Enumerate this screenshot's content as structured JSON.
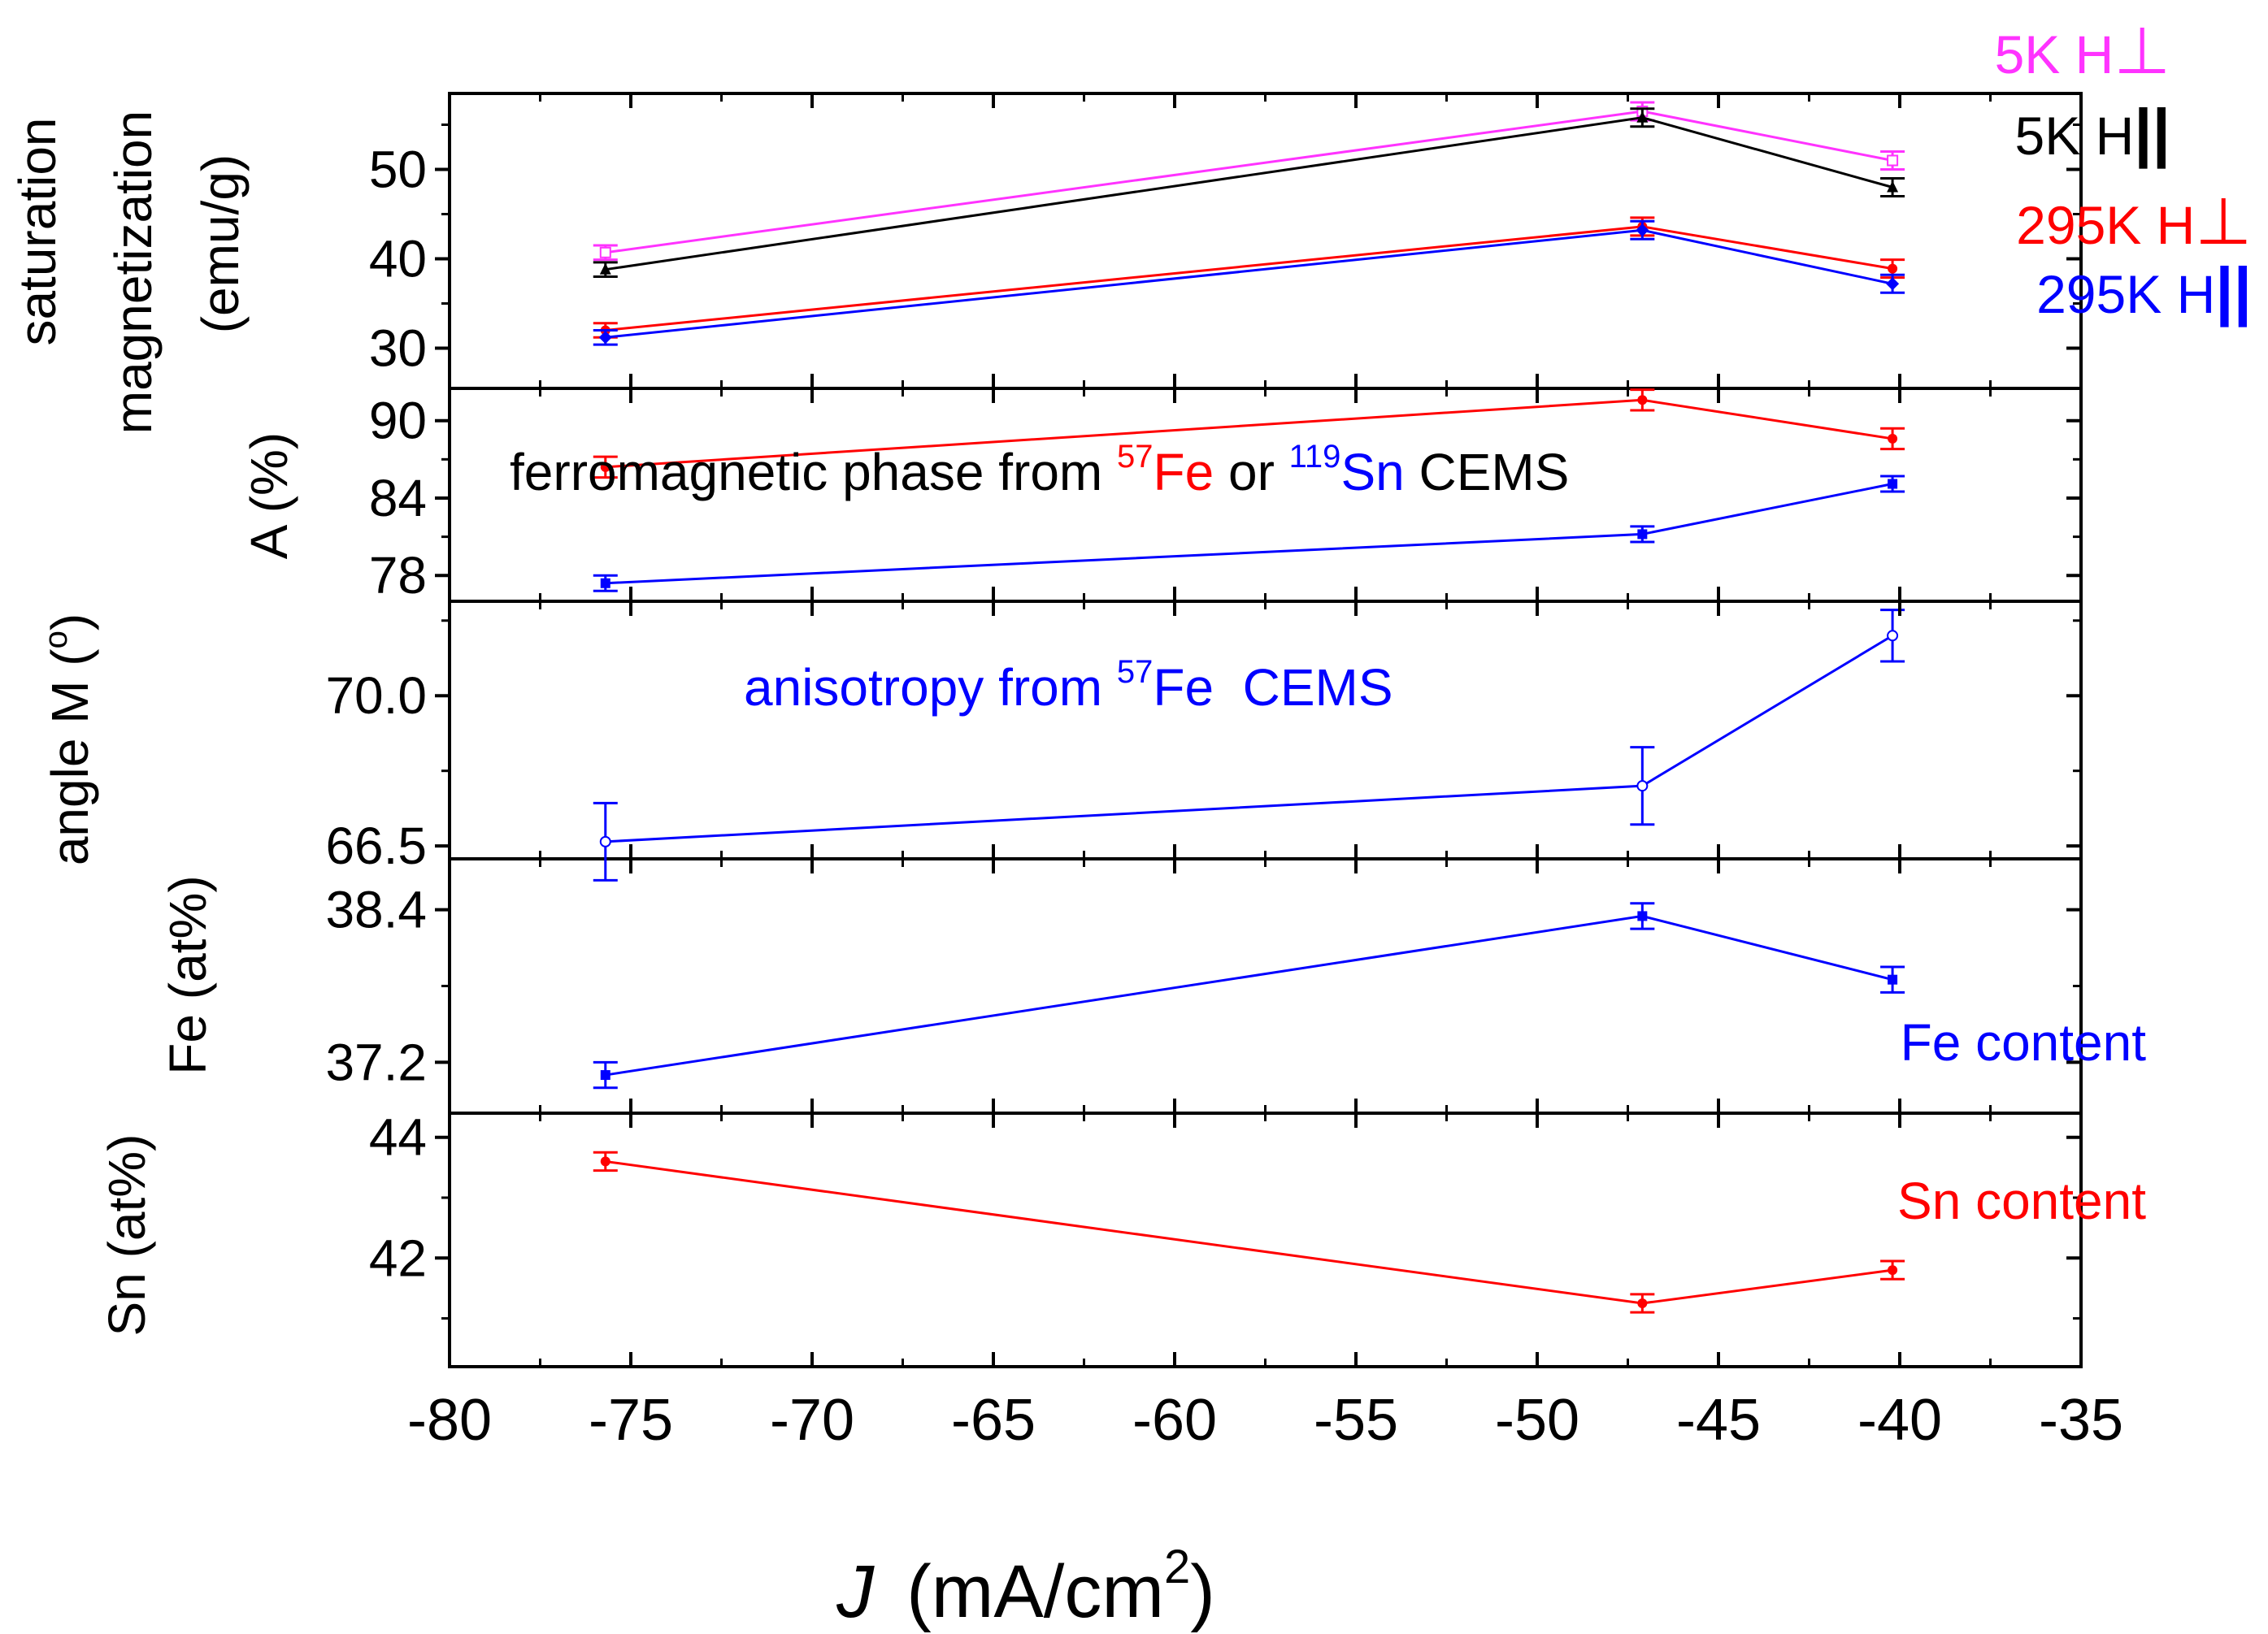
{
  "x_axis": {
    "label_italic": "J",
    "label_rest": "(mA/cm",
    "label_sup": "2",
    "label_close": ")",
    "range": [
      -80,
      -35
    ],
    "ticks": [
      -80,
      -75,
      -70,
      -65,
      -60,
      -55,
      -50,
      -45,
      -40,
      -35
    ],
    "tick_labels": [
      "-80",
      "-75",
      "-70",
      "-65",
      "-60",
      "-55",
      "-50",
      "-45",
      "-40",
      "-35"
    ]
  },
  "colors": {
    "magenta": "#ff33ff",
    "black": "#000000",
    "red": "#ff0000",
    "blue": "#0000ff"
  },
  "chart_data": [
    {
      "type": "line",
      "id": "magnetization",
      "ylabel_line1": "saturation",
      "ylabel_line2": "magnetization",
      "ylabel_line3": "(emu/g)",
      "ylim": [
        25.5,
        58.5
      ],
      "yticks": [
        30,
        40,
        50
      ],
      "ytick_labels": [
        "30",
        "40",
        "50"
      ],
      "series": [
        {
          "name": "5K H⊥",
          "label_text": "5K H",
          "label_symbol": "⊥",
          "color": "#ff33ff",
          "marker": "open-square",
          "x": [
            -75.7,
            -47.1,
            -40.2
          ],
          "y": [
            40.7,
            56.5,
            51.0
          ],
          "err": [
            0.8,
            1.0,
            1.0
          ]
        },
        {
          "name": "5K H||",
          "label_text": "5K H",
          "label_symbol": "||",
          "color": "#000000",
          "marker": "triangle",
          "x": [
            -75.7,
            -47.1,
            -40.2
          ],
          "y": [
            38.8,
            55.8,
            48.0
          ],
          "err": [
            0.8,
            1.0,
            1.0
          ]
        },
        {
          "name": "295K H⊥",
          "label_text": "295K H",
          "label_symbol": "⊥",
          "color": "#ff0000",
          "marker": "dot",
          "x": [
            -75.7,
            -47.1,
            -40.2
          ],
          "y": [
            32.0,
            43.6,
            38.9
          ],
          "err": [
            0.8,
            1.0,
            1.0
          ]
        },
        {
          "name": "295K H||",
          "label_text": "295K H",
          "label_symbol": "||",
          "color": "#0000ff",
          "marker": "diamond",
          "x": [
            -75.7,
            -47.1,
            -40.2
          ],
          "y": [
            31.2,
            43.2,
            37.2
          ],
          "err": [
            0.8,
            1.0,
            1.0
          ]
        }
      ]
    },
    {
      "type": "line",
      "id": "ferromagnetic-phase",
      "ylabel": "A (%)",
      "ylim": [
        76,
        92.5
      ],
      "yticks": [
        78,
        84,
        90
      ],
      "ytick_labels": [
        "78",
        "84",
        "90"
      ],
      "annotation": {
        "p1": "ferromagnetic phase from ",
        "sup1": "57",
        "el1": "Fe",
        "p2": " or ",
        "sup2": "119",
        "el2": "Sn",
        "p3": " CEMS"
      },
      "series": [
        {
          "name": "57Fe CEMS",
          "color": "#ff0000",
          "marker": "dot",
          "x": [
            -75.7,
            -47.1,
            -40.2
          ],
          "y": [
            86.4,
            91.6,
            88.6
          ],
          "err": [
            0.8,
            0.8,
            0.8
          ]
        },
        {
          "name": "119Sn CEMS",
          "color": "#0000ff",
          "marker": "square",
          "x": [
            -75.7,
            -47.1,
            -40.2
          ],
          "y": [
            77.4,
            81.2,
            85.1
          ],
          "err": [
            0.6,
            0.6,
            0.6
          ]
        }
      ]
    },
    {
      "type": "line",
      "id": "anisotropy",
      "ylabel": "angle M (°)",
      "ylabel_text": "angle M (",
      "ylabel_sup": "o",
      "ylabel_close": ")",
      "ylim": [
        66.2,
        72.2
      ],
      "yticks": [
        66.5,
        70.0
      ],
      "ytick_labels": [
        "66.5",
        "70.0"
      ],
      "annotation": {
        "p1": "anisotropy from ",
        "sup1": "57",
        "el1": "Fe  CEMS"
      },
      "series": [
        {
          "name": "57Fe CEMS anisotropy",
          "color": "#0000ff",
          "marker": "open-circle",
          "x": [
            -75.7,
            -47.1,
            -40.2
          ],
          "y": [
            66.6,
            67.9,
            71.4
          ],
          "err": [
            0.9,
            0.9,
            0.6
          ]
        }
      ]
    },
    {
      "type": "line",
      "id": "fe-content",
      "ylabel": "Fe (at%)",
      "ylim": [
        36.8,
        38.8
      ],
      "yticks": [
        37.2,
        38.4
      ],
      "ytick_labels": [
        "37.2",
        "38.4"
      ],
      "annotation_text": "Fe content",
      "series": [
        {
          "name": "Fe content",
          "color": "#0000ff",
          "marker": "square",
          "x": [
            -75.7,
            -47.1,
            -40.2
          ],
          "y": [
            37.1,
            38.35,
            37.85
          ],
          "err": [
            0.1,
            0.1,
            0.1
          ]
        }
      ]
    },
    {
      "type": "line",
      "id": "sn-content",
      "ylabel": "Sn (at%)",
      "ylim": [
        40.2,
        44.4
      ],
      "yticks": [
        42,
        44
      ],
      "ytick_labels": [
        "42",
        "44"
      ],
      "annotation_text": "Sn content",
      "series": [
        {
          "name": "Sn content",
          "color": "#ff0000",
          "marker": "dot",
          "x": [
            -75.7,
            -47.1,
            -40.2
          ],
          "y": [
            43.6,
            41.25,
            41.8
          ],
          "err": [
            0.15,
            0.15,
            0.15
          ]
        }
      ]
    }
  ]
}
